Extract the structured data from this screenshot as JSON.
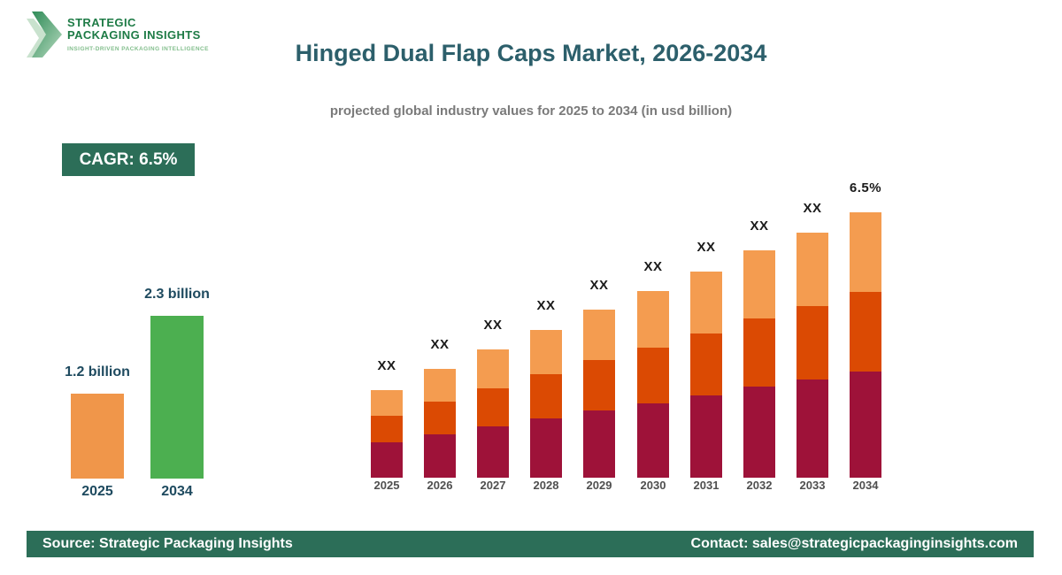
{
  "logo": {
    "line1": "STRATEGIC",
    "line2": "PACKAGING INSIGHTS",
    "tagline": "INSIGHT-DRIVEN PACKAGING INTELLIGENCE"
  },
  "header": {
    "title": "Hinged Dual Flap Caps Market, 2026-2034",
    "subtitle": "projected global industry values for 2025 to 2034 (in usd billion)"
  },
  "cagr_badge": "CAGR: 6.5%",
  "colors": {
    "brand_green_dark": "#2C6E58",
    "logo_green": "#1E7B46",
    "logo_tagline_green": "#82BE8C",
    "title_teal": "#2C5F6B",
    "label_teal": "#1E4A5F",
    "subtitle_gray": "#7A7A7A",
    "axis_gray": "#4F4F4F",
    "mini_orange": "#F0964A",
    "mini_green": "#4CAF50",
    "stack_bottom_maroon": "#9E1239",
    "stack_middle_orange_red": "#DB4A03",
    "stack_top_light_orange": "#F49C50"
  },
  "chart_data": [
    {
      "type": "bar",
      "name": "market-size-summary",
      "unit": "usd billion",
      "categories": [
        "2025",
        "2034"
      ],
      "values": [
        1.2,
        2.3
      ],
      "value_labels": [
        "1.2 billion",
        "2.3 billion"
      ],
      "bar_colors": [
        "#F0964A",
        "#4CAF50"
      ],
      "legend": "none",
      "grid": false
    },
    {
      "type": "bar",
      "name": "projected-values-by-year",
      "stacked": true,
      "unit": "usd billion (values masked)",
      "categories": [
        "2025",
        "2026",
        "2027",
        "2028",
        "2029",
        "2030",
        "2031",
        "2032",
        "2033",
        "2034"
      ],
      "series": [
        {
          "name": "bottom-segment",
          "color": "#9E1239",
          "values": [
            40,
            49,
            58,
            67,
            76,
            84,
            93,
            103,
            111,
            120
          ]
        },
        {
          "name": "middle-segment",
          "color": "#DB4A03",
          "values": [
            30,
            37,
            43,
            50,
            57,
            63,
            70,
            77,
            83,
            90
          ]
        },
        {
          "name": "top-segment",
          "color": "#F49C50",
          "values": [
            29,
            37,
            44,
            50,
            57,
            64,
            70,
            77,
            83,
            90
          ]
        }
      ],
      "bar_labels": [
        "XX",
        "XX",
        "XX",
        "XX",
        "XX",
        "XX",
        "XX",
        "XX",
        "XX",
        "6.5%"
      ],
      "legend": "none",
      "grid": false
    }
  ],
  "footer": {
    "source": "Source: Strategic Packaging Insights",
    "contact": "Contact: sales@strategicpackaginginsights.com"
  }
}
